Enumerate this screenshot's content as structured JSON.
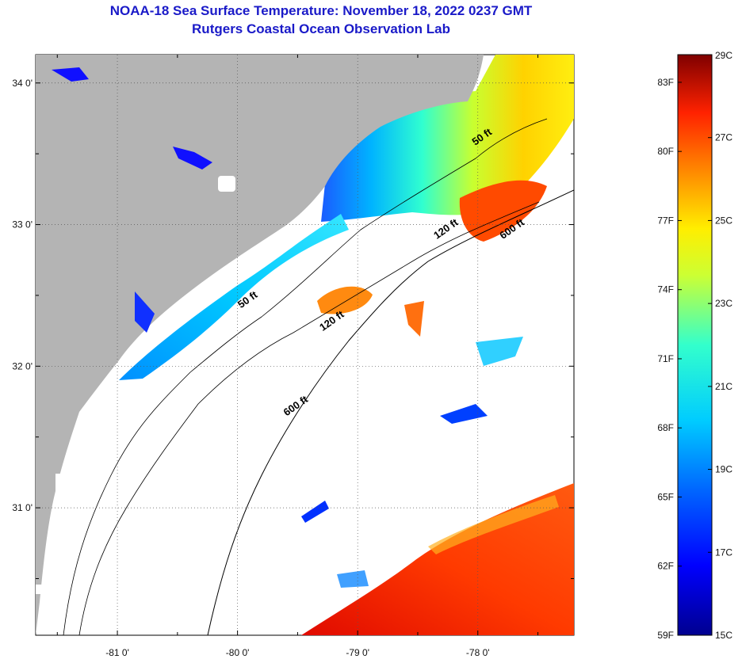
{
  "title": {
    "line1": "NOAA-18 Sea Surface Temperature:  November 18, 2022 0237 GMT",
    "line2": "Rutgers Coastal Ocean Observation Lab"
  },
  "map": {
    "lon_range": [
      -81.68,
      -77.2
    ],
    "lat_range": [
      30.1,
      34.2
    ],
    "lon_ticks": [
      {
        "value": -81,
        "label": "-81 0'"
      },
      {
        "value": -80,
        "label": "-80 0'"
      },
      {
        "value": -79,
        "label": "-79 0'"
      },
      {
        "value": -78,
        "label": "-78 0'"
      }
    ],
    "lat_ticks": [
      {
        "value": 34,
        "label": "34 0'"
      },
      {
        "value": 33,
        "label": "33 0'"
      },
      {
        "value": 32,
        "label": "32 0'"
      },
      {
        "value": 31,
        "label": "31 0'"
      }
    ],
    "contour_labels": [
      {
        "text": "50 ft",
        "lon": -77.95,
        "lat": 33.6
      },
      {
        "text": "50 ft",
        "lon": -79.9,
        "lat": 32.45
      },
      {
        "text": "120 ft",
        "lon": -78.25,
        "lat": 32.95
      },
      {
        "text": "120 ft",
        "lon": -79.2,
        "lat": 32.3
      },
      {
        "text": "600 ft",
        "lon": -77.7,
        "lat": 32.95
      },
      {
        "text": "600 ft",
        "lon": -79.5,
        "lat": 31.7
      }
    ],
    "colors": {
      "land": "#b4b4b4",
      "cloud": "#ffffff",
      "grid": "#555555"
    }
  },
  "colorbar": {
    "celsius_labels": [
      "29C",
      "27C",
      "25C",
      "23C",
      "21C",
      "19C",
      "17C",
      "15C"
    ],
    "fahrenheit_labels": [
      "83F",
      "80F",
      "77F",
      "74F",
      "71F",
      "68F",
      "65F",
      "62F",
      "59F"
    ],
    "celsius_range": [
      15,
      29
    ]
  }
}
